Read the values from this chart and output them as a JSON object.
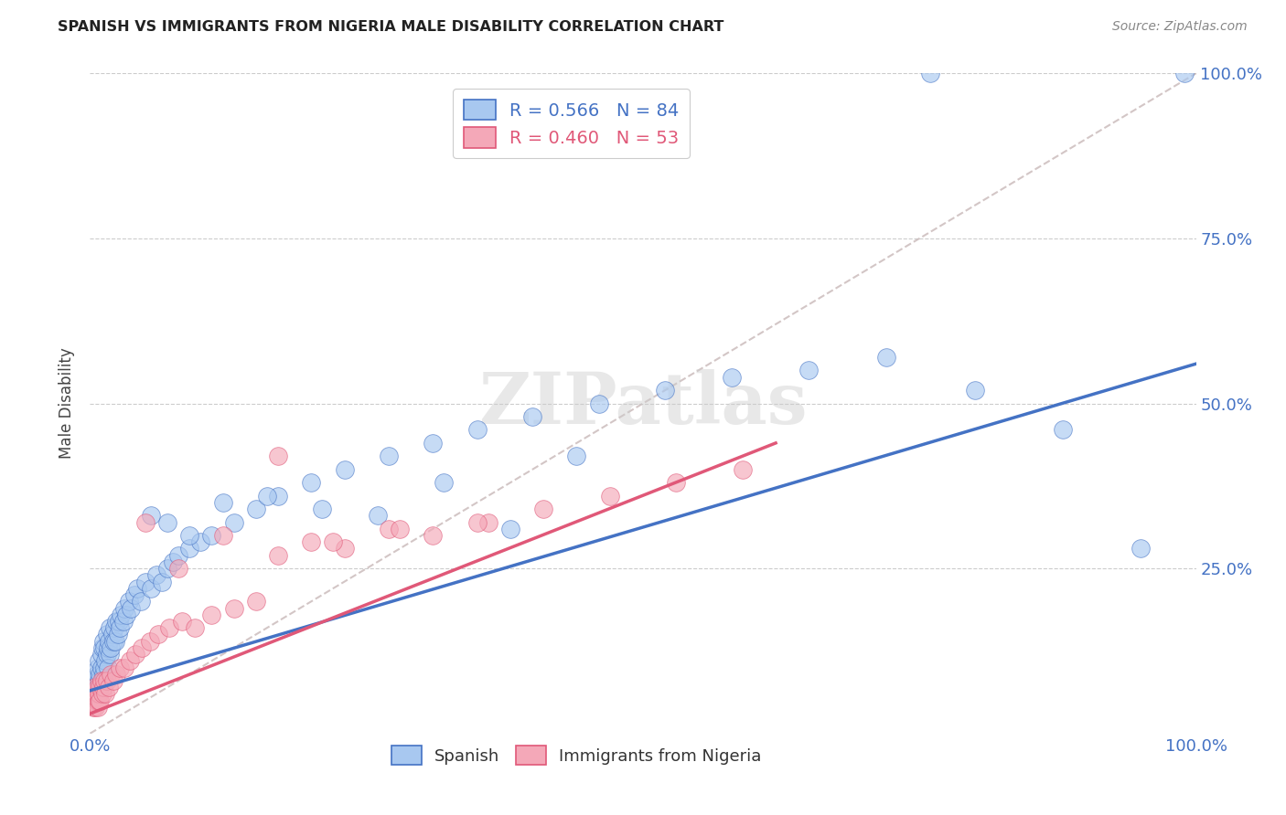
{
  "title": "SPANISH VS IMMIGRANTS FROM NIGERIA MALE DISABILITY CORRELATION CHART",
  "source": "Source: ZipAtlas.com",
  "ylabel": "Male Disability",
  "watermark": "ZIPatlas",
  "legend1_label": "R = 0.566   N = 84",
  "legend2_label": "R = 0.460   N = 53",
  "color_spanish": "#A8C8F0",
  "color_nigeria": "#F4A8B8",
  "color_line_spanish": "#4472C4",
  "color_line_nigeria": "#E05878",
  "color_line_diagonal": "#C8B8B8",
  "R_spanish": 0.566,
  "N_spanish": 84,
  "R_nigeria": 0.46,
  "N_nigeria": 53,
  "line_spanish": [
    0.0,
    0.065,
    1.0,
    0.56
  ],
  "line_nigeria": [
    0.0,
    0.03,
    0.62,
    0.44
  ],
  "xlim": [
    0.0,
    1.0
  ],
  "ylim": [
    0.0,
    1.0
  ],
  "ytick_positions": [
    0.25,
    0.5,
    0.75,
    1.0
  ],
  "ytick_labels": [
    "25.0%",
    "50.0%",
    "75.0%",
    "100.0%"
  ],
  "background_color": "#FFFFFF",
  "grid_color": "#CCCCCC",
  "spanish_x": [
    0.003,
    0.004,
    0.005,
    0.006,
    0.006,
    0.007,
    0.007,
    0.008,
    0.008,
    0.009,
    0.009,
    0.01,
    0.01,
    0.011,
    0.011,
    0.012,
    0.012,
    0.013,
    0.013,
    0.014,
    0.015,
    0.015,
    0.016,
    0.016,
    0.017,
    0.018,
    0.018,
    0.019,
    0.02,
    0.021,
    0.022,
    0.023,
    0.024,
    0.025,
    0.026,
    0.027,
    0.028,
    0.03,
    0.031,
    0.033,
    0.035,
    0.037,
    0.04,
    0.043,
    0.046,
    0.05,
    0.055,
    0.06,
    0.065,
    0.07,
    0.075,
    0.08,
    0.09,
    0.1,
    0.11,
    0.13,
    0.15,
    0.17,
    0.2,
    0.23,
    0.27,
    0.31,
    0.35,
    0.4,
    0.46,
    0.52,
    0.58,
    0.65,
    0.72,
    0.8,
    0.88,
    0.95,
    0.76,
    0.99,
    0.055,
    0.07,
    0.09,
    0.12,
    0.16,
    0.21,
    0.26,
    0.32,
    0.38,
    0.44
  ],
  "spanish_y": [
    0.07,
    0.06,
    0.08,
    0.07,
    0.09,
    0.06,
    0.1,
    0.08,
    0.11,
    0.07,
    0.09,
    0.1,
    0.12,
    0.08,
    0.13,
    0.09,
    0.14,
    0.1,
    0.13,
    0.11,
    0.12,
    0.15,
    0.1,
    0.13,
    0.14,
    0.12,
    0.16,
    0.13,
    0.15,
    0.14,
    0.16,
    0.14,
    0.17,
    0.15,
    0.17,
    0.16,
    0.18,
    0.17,
    0.19,
    0.18,
    0.2,
    0.19,
    0.21,
    0.22,
    0.2,
    0.23,
    0.22,
    0.24,
    0.23,
    0.25,
    0.26,
    0.27,
    0.28,
    0.29,
    0.3,
    0.32,
    0.34,
    0.36,
    0.38,
    0.4,
    0.42,
    0.44,
    0.46,
    0.48,
    0.5,
    0.52,
    0.54,
    0.55,
    0.57,
    0.52,
    0.46,
    0.28,
    1.0,
    1.0,
    0.33,
    0.32,
    0.3,
    0.35,
    0.36,
    0.34,
    0.33,
    0.38,
    0.31,
    0.42
  ],
  "nigeria_x": [
    0.002,
    0.003,
    0.004,
    0.005,
    0.005,
    0.006,
    0.006,
    0.007,
    0.007,
    0.008,
    0.008,
    0.009,
    0.009,
    0.01,
    0.011,
    0.012,
    0.013,
    0.014,
    0.015,
    0.017,
    0.019,
    0.021,
    0.024,
    0.027,
    0.031,
    0.036,
    0.041,
    0.047,
    0.054,
    0.062,
    0.072,
    0.083,
    0.095,
    0.11,
    0.13,
    0.15,
    0.17,
    0.2,
    0.23,
    0.27,
    0.31,
    0.36,
    0.41,
    0.47,
    0.53,
    0.59,
    0.05,
    0.08,
    0.12,
    0.17,
    0.22,
    0.28,
    0.35
  ],
  "nigeria_y": [
    0.05,
    0.04,
    0.06,
    0.04,
    0.07,
    0.05,
    0.06,
    0.04,
    0.07,
    0.05,
    0.06,
    0.07,
    0.05,
    0.08,
    0.06,
    0.07,
    0.08,
    0.06,
    0.08,
    0.07,
    0.09,
    0.08,
    0.09,
    0.1,
    0.1,
    0.11,
    0.12,
    0.13,
    0.14,
    0.15,
    0.16,
    0.17,
    0.16,
    0.18,
    0.19,
    0.2,
    0.42,
    0.29,
    0.28,
    0.31,
    0.3,
    0.32,
    0.34,
    0.36,
    0.38,
    0.4,
    0.32,
    0.25,
    0.3,
    0.27,
    0.29,
    0.31,
    0.32
  ]
}
